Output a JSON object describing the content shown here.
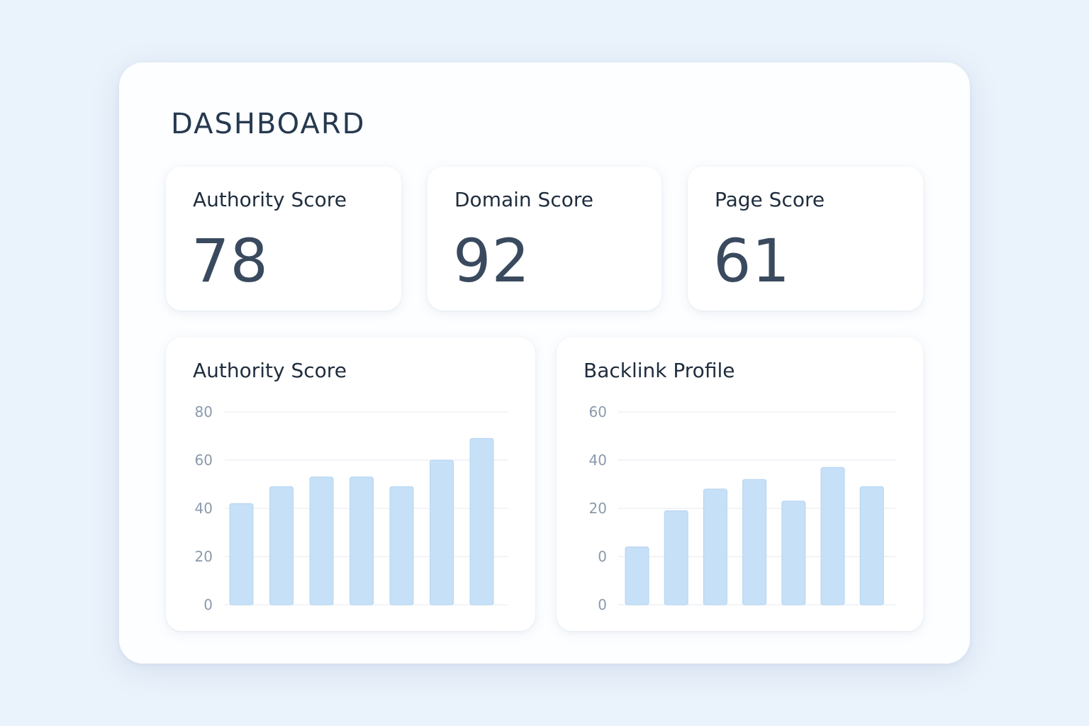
{
  "dashboard": {
    "title": "DASHBOARD",
    "score_cards": [
      {
        "label": "Authority Score",
        "value": "78"
      },
      {
        "label": "Domain Score",
        "value": "92"
      },
      {
        "label": "Page Score",
        "value": "61"
      }
    ]
  },
  "chart_data": [
    {
      "type": "bar",
      "title": "Authority Score",
      "y_tick_labels": [
        "80",
        "60",
        "40",
        "20",
        "0"
      ],
      "values": [
        42,
        49,
        53,
        53,
        49,
        60,
        69
      ],
      "ylim": [
        0,
        80
      ],
      "grid": true,
      "colors": {
        "bar": "#c6e0f7",
        "bar_border": "#b5d4f0"
      }
    },
    {
      "type": "bar",
      "title": "Backlink Profile",
      "y_tick_labels": [
        "60",
        "40",
        "20",
        "0",
        "0"
      ],
      "values": [
        24,
        39,
        48,
        52,
        43,
        57,
        49
      ],
      "ylim": [
        0,
        80
      ],
      "grid": true,
      "colors": {
        "bar": "#c6e0f7",
        "bar_border": "#b5d4f0"
      }
    }
  ]
}
